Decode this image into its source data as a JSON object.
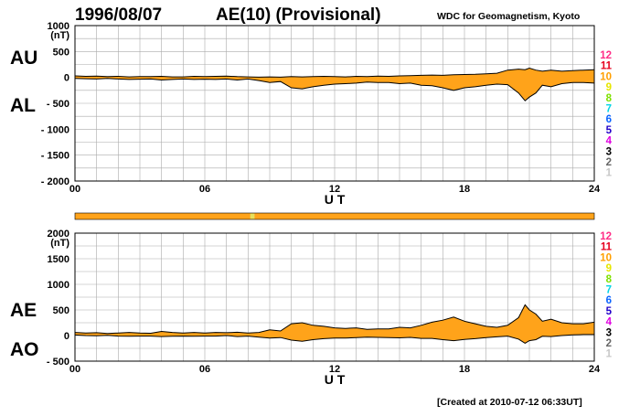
{
  "header": {
    "date": "1996/08/07",
    "title": "AE(10) (Provisional)",
    "source": "WDC for Geomagnetism, Kyoto"
  },
  "footer": {
    "created": "[Created at 2010-07-12 06:33UT]"
  },
  "colors": {
    "fill": "#ffa31a",
    "line": "#000000",
    "grid": "#aaaaaa",
    "bar_main": "#ffa31a",
    "bar_highlight": "#e8e05a"
  },
  "station_scale": [
    {
      "label": "12",
      "color": "#ff2d87"
    },
    {
      "label": "11",
      "color": "#e6001e"
    },
    {
      "label": "10",
      "color": "#ff9f00"
    },
    {
      "label": "9",
      "color": "#e6e600"
    },
    {
      "label": "8",
      "color": "#7ee000"
    },
    {
      "label": "7",
      "color": "#00d4e6"
    },
    {
      "label": "6",
      "color": "#0a64ff"
    },
    {
      "label": "5",
      "color": "#1f00c8"
    },
    {
      "label": "4",
      "color": "#e000e0"
    },
    {
      "label": "3",
      "color": "#000000"
    },
    {
      "label": "2",
      "color": "#666666"
    },
    {
      "label": "1",
      "color": "#c8c8c8"
    }
  ],
  "station_bar": {
    "hours": [
      0,
      24
    ],
    "highlights": [
      {
        "from": 8.1,
        "to": 8.3
      }
    ]
  },
  "chart_data": [
    {
      "type": "area",
      "name": "AU/AL",
      "series_labels": [
        "AU",
        "AL"
      ],
      "unit": "(nT)",
      "xlabel": "U T",
      "xlim": [
        0,
        24
      ],
      "ylim": [
        -2000,
        1000
      ],
      "yticks": [
        1000,
        500,
        0,
        -500,
        -1000,
        -1500,
        -2000
      ],
      "ytick_labels": [
        "1000",
        "500",
        "0",
        "- 500",
        "- 1000",
        "- 1500",
        "- 2000"
      ],
      "xticks": [
        0,
        6,
        12,
        18,
        24
      ],
      "xtick_labels": [
        "00",
        "06",
        "12",
        "18",
        "24"
      ],
      "grid": true,
      "x": [
        0,
        0.5,
        1,
        1.5,
        2,
        2.5,
        3,
        3.5,
        4,
        4.5,
        5,
        5.5,
        6,
        6.5,
        7,
        7.5,
        8,
        8.5,
        9,
        9.5,
        10,
        10.5,
        11,
        11.5,
        12,
        12.5,
        13,
        13.5,
        14,
        14.5,
        15,
        15.5,
        16,
        16.5,
        17,
        17.5,
        18,
        18.5,
        19,
        19.5,
        20,
        20.5,
        20.8,
        21,
        21.3,
        21.6,
        22,
        22.5,
        23,
        23.5,
        24
      ],
      "upper": [
        30,
        20,
        25,
        15,
        20,
        10,
        15,
        15,
        20,
        10,
        10,
        20,
        15,
        20,
        25,
        15,
        10,
        5,
        10,
        5,
        15,
        10,
        15,
        20,
        15,
        10,
        20,
        15,
        25,
        20,
        30,
        35,
        40,
        45,
        40,
        50,
        55,
        60,
        70,
        80,
        140,
        160,
        150,
        180,
        140,
        120,
        140,
        120,
        130,
        140,
        150
      ],
      "lower": [
        -20,
        -25,
        -30,
        -20,
        -30,
        -40,
        -35,
        -30,
        -50,
        -40,
        -30,
        -40,
        -35,
        -40,
        -30,
        -50,
        -30,
        -60,
        -100,
        -80,
        -200,
        -220,
        -180,
        -150,
        -130,
        -120,
        -110,
        -90,
        -100,
        -100,
        -120,
        -110,
        -150,
        -160,
        -200,
        -250,
        -200,
        -180,
        -150,
        -130,
        -140,
        -300,
        -450,
        -380,
        -300,
        -150,
        -180,
        -120,
        -100,
        -100,
        -110
      ]
    },
    {
      "type": "area",
      "name": "AE/AO",
      "series_labels": [
        "AE",
        "AO"
      ],
      "unit": "(nT)",
      "xlabel": "U T",
      "xlim": [
        0,
        24
      ],
      "ylim": [
        -500,
        2000
      ],
      "yticks": [
        2000,
        1500,
        1000,
        500,
        0,
        -500
      ],
      "ytick_labels": [
        "2000",
        "1500",
        "1000",
        "500",
        "0",
        "- 500"
      ],
      "xticks": [
        0,
        6,
        12,
        18,
        24
      ],
      "xtick_labels": [
        "00",
        "06",
        "12",
        "18",
        "24"
      ],
      "grid": true,
      "x": [
        0,
        0.5,
        1,
        1.5,
        2,
        2.5,
        3,
        3.5,
        4,
        4.5,
        5,
        5.5,
        6,
        6.5,
        7,
        7.5,
        8,
        8.5,
        9,
        9.5,
        10,
        10.5,
        11,
        11.5,
        12,
        12.5,
        13,
        13.5,
        14,
        14.5,
        15,
        15.5,
        16,
        16.5,
        17,
        17.5,
        18,
        18.5,
        19,
        19.5,
        20,
        20.5,
        20.8,
        21,
        21.3,
        21.6,
        22,
        22.5,
        23,
        23.5,
        24
      ],
      "upper": [
        60,
        50,
        55,
        40,
        50,
        60,
        50,
        45,
        80,
        60,
        50,
        60,
        50,
        60,
        55,
        65,
        50,
        60,
        110,
        90,
        230,
        250,
        200,
        180,
        150,
        140,
        150,
        120,
        130,
        130,
        160,
        150,
        200,
        260,
        300,
        360,
        280,
        230,
        180,
        160,
        200,
        350,
        600,
        500,
        420,
        280,
        320,
        250,
        230,
        230,
        260
      ],
      "lower": [
        10,
        0,
        -5,
        5,
        -10,
        -15,
        -10,
        -10,
        -20,
        -15,
        -10,
        -15,
        -10,
        -10,
        0,
        -20,
        -10,
        -30,
        -50,
        -40,
        -90,
        -110,
        -80,
        -60,
        -50,
        -50,
        -40,
        -30,
        -35,
        -40,
        -45,
        -35,
        -55,
        -55,
        -80,
        -100,
        -75,
        -60,
        -40,
        -25,
        -10,
        -70,
        -150,
        -100,
        -80,
        -15,
        -20,
        0,
        15,
        20,
        20
      ]
    }
  ]
}
